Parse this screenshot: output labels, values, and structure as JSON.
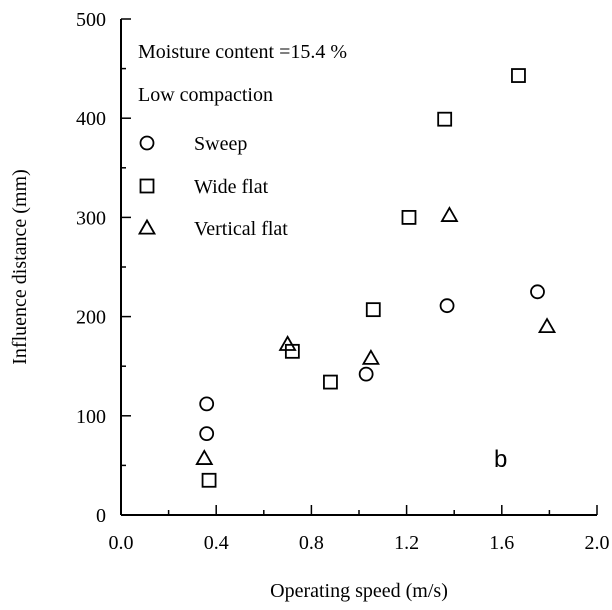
{
  "chart_data": {
    "type": "scatter",
    "title": "",
    "xlabel": "Operating speed (m/s)",
    "ylabel": "Influence distance (mm)",
    "xlim": [
      0.0,
      2.0
    ],
    "ylim": [
      0,
      500
    ],
    "x_ticks": [
      "0.0",
      "0.4",
      "0.8",
      "1.2",
      "1.6",
      "2.0"
    ],
    "y_ticks": [
      "0",
      "100",
      "200",
      "300",
      "400",
      "500"
    ],
    "grid": false,
    "legend_position": "top-left",
    "annotations": [
      "Moisture content =15.4 %",
      "Low compaction"
    ],
    "panel_label": "b",
    "series": [
      {
        "name": "Sweep",
        "marker": "circle",
        "x": [
          0.36,
          0.36,
          1.03,
          1.37,
          1.75
        ],
        "y": [
          112,
          82,
          142,
          211,
          225
        ]
      },
      {
        "name": "Wide flat",
        "marker": "square",
        "x": [
          0.37,
          0.72,
          0.88,
          1.06,
          1.21,
          1.36,
          1.67
        ],
        "y": [
          35,
          165,
          134,
          207,
          300,
          399,
          443
        ]
      },
      {
        "name": "Vertical flat",
        "marker": "triangle",
        "x": [
          0.35,
          0.7,
          1.05,
          1.38,
          1.79
        ],
        "y": [
          57,
          172,
          158,
          302,
          190
        ]
      }
    ]
  }
}
